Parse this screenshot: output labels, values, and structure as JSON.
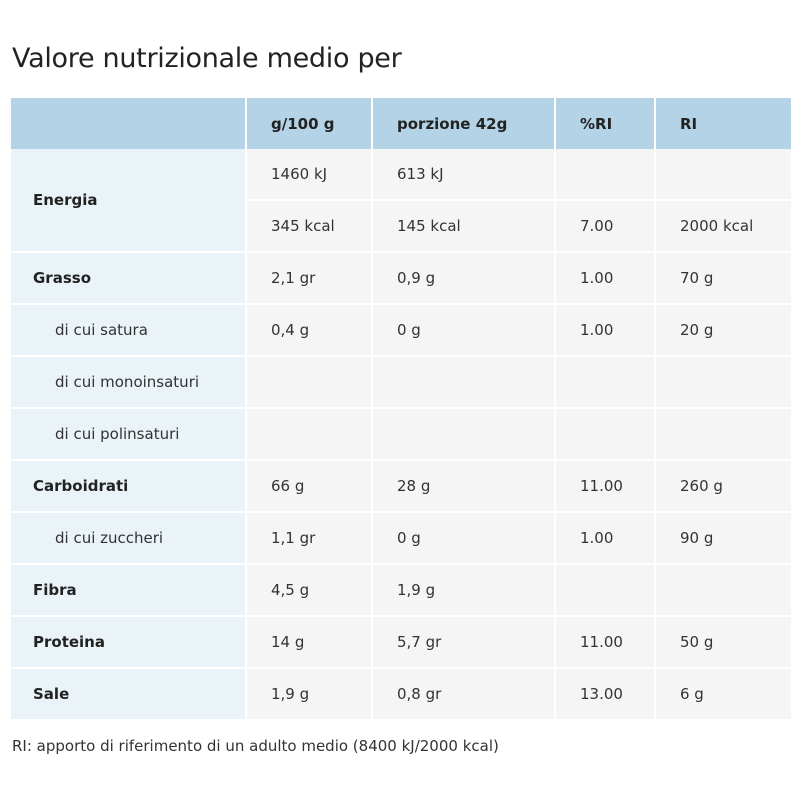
{
  "title": "Valore nutrizionale medio per",
  "columns": {
    "nutrient": "",
    "per100": "g/100 g",
    "portion": "porzione 42g",
    "ri_pct": "%RI",
    "ri": "RI"
  },
  "rows": {
    "energia": {
      "label": "Energia",
      "kj": {
        "per100": "1460 kJ",
        "portion": "613 kJ",
        "ri_pct": "",
        "ri": ""
      },
      "kcal": {
        "per100": "345 kcal",
        "portion": "145 kcal",
        "ri_pct": "7.00",
        "ri": "2000 kcal"
      }
    },
    "grasso": {
      "label": "Grasso",
      "per100": "2,1 gr",
      "portion": "0,9 g",
      "ri_pct": "1.00",
      "ri": "70 g"
    },
    "satura": {
      "label": "di cui satura",
      "per100": "0,4 g",
      "portion": "0 g",
      "ri_pct": "1.00",
      "ri": "20 g"
    },
    "monoinsaturi": {
      "label": "di cui monoinsaturi",
      "per100": "",
      "portion": "",
      "ri_pct": "",
      "ri": ""
    },
    "polinsaturi": {
      "label": "di cui polinsaturi",
      "per100": "",
      "portion": "",
      "ri_pct": "",
      "ri": ""
    },
    "carboidrati": {
      "label": "Carboidrati",
      "per100": "66 g",
      "portion": "28 g",
      "ri_pct": "11.00",
      "ri": "260 g"
    },
    "zuccheri": {
      "label": "di cui zuccheri",
      "per100": "1,1 gr",
      "portion": "0 g",
      "ri_pct": "1.00",
      "ri": "90 g"
    },
    "fibra": {
      "label": "Fibra",
      "per100": "4,5 g",
      "portion": "1,9 g",
      "ri_pct": "",
      "ri": ""
    },
    "proteina": {
      "label": "Proteina",
      "per100": "14 g",
      "portion": "5,7 gr",
      "ri_pct": "11.00",
      "ri": "50 g"
    },
    "sale": {
      "label": "Sale",
      "per100": "1,9 g",
      "portion": "0,8 gr",
      "ri_pct": "13.00",
      "ri": "6 g"
    }
  },
  "footnote": "RI: apporto di riferimento di un adulto medio (8400 kJ/2000 kcal)",
  "colors": {
    "header_bg": "#b5d3e7",
    "label_bg": "#eaf3f8",
    "value_bg": "#f5f5f5"
  }
}
